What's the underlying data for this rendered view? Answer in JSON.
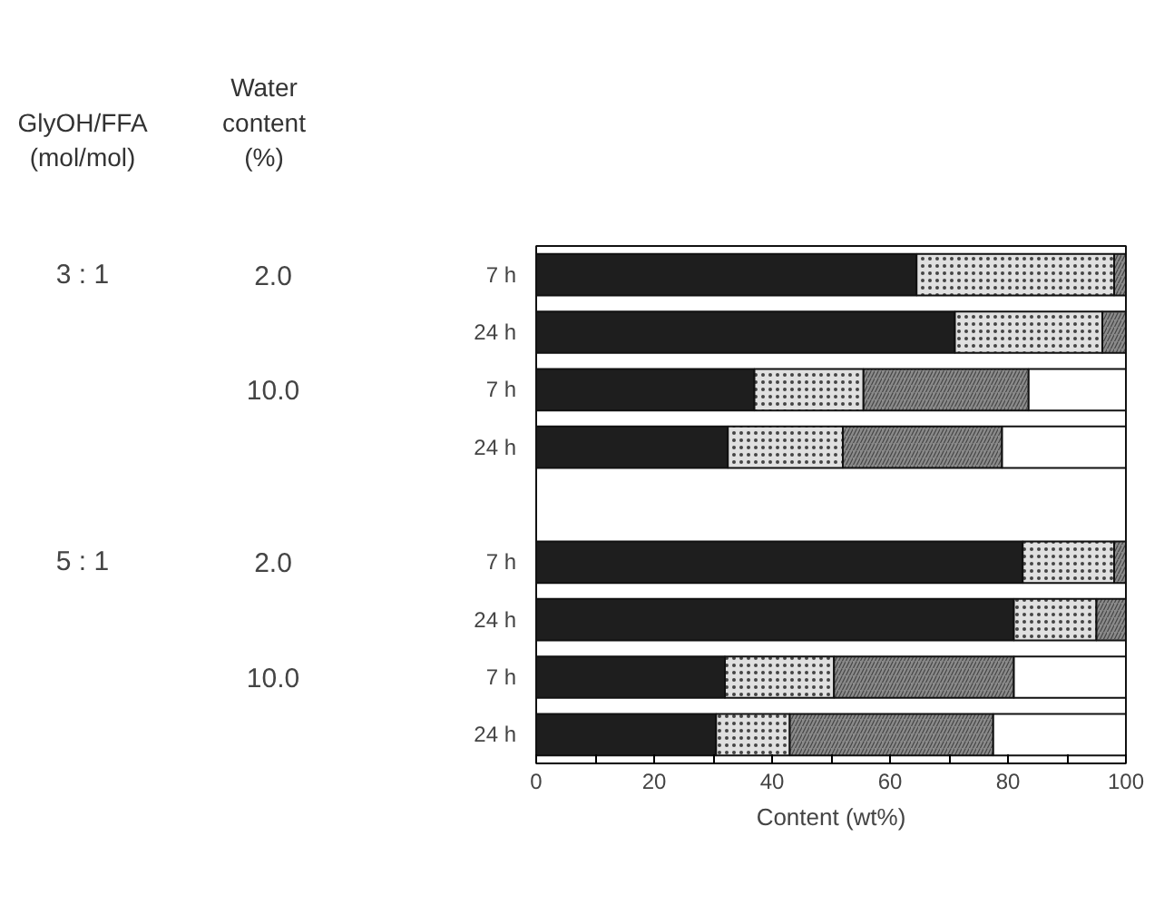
{
  "chart_data": {
    "type": "bar",
    "orientation": "horizontal",
    "stacked": true,
    "xlabel": "Content (wt%)",
    "categories": [
      "7 h",
      "24 h",
      "7 h",
      "24 h",
      null,
      "7 h",
      "24 h",
      "7 h",
      "24 h"
    ],
    "series": [
      {
        "color": "#1e1e1e",
        "values": [
          64.5,
          71,
          37,
          32.5,
          null,
          82.5,
          81,
          32,
          30.5
        ]
      },
      {
        "color": "#e0e0e0",
        "values": [
          33.5,
          25,
          18.5,
          19.5,
          null,
          15.5,
          14,
          18.5,
          12.5
        ]
      },
      {
        "color": "#8a8a8a",
        "values": [
          2,
          4,
          28,
          27,
          null,
          2,
          5,
          30.5,
          34.5
        ]
      },
      {
        "color": "#ffffff",
        "values": [
          null,
          null,
          16.5,
          21,
          null,
          null,
          null,
          19,
          22.5
        ]
      }
    ],
    "xlim": [
      0,
      100
    ],
    "xticks": [
      0,
      {
        "value": 10,
        "label": null
      },
      20,
      {
        "value": 30,
        "label": null
      },
      40,
      {
        "value": 50,
        "label": null
      },
      60,
      {
        "value": 70,
        "label": null
      },
      80,
      {
        "value": 90,
        "label": null
      },
      100
    ],
    "annotations": [
      "GlyOH/FFA\n(mol/mol)",
      "Water\ncontent\n(%)",
      "3 : 1",
      "2.0",
      "10.0",
      "5 : 1",
      "2.0",
      "10.0"
    ],
    "grid": false
  }
}
